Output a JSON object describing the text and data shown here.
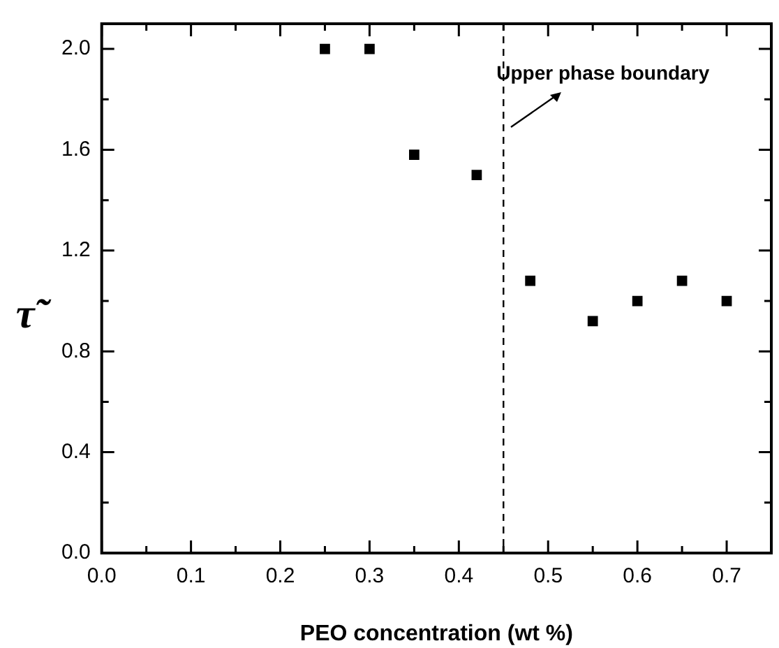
{
  "chart_data": {
    "type": "scatter",
    "xlabel": "PEO concentration (wt %)",
    "ylabel": "τ̃",
    "x": [
      0.25,
      0.3,
      0.35,
      0.42,
      0.48,
      0.55,
      0.6,
      0.65,
      0.7
    ],
    "series": [
      {
        "color": "#000000",
        "values": [
          2.0,
          2.0,
          1.58,
          1.5,
          1.08,
          0.92,
          1.0,
          1.08,
          1.0
        ]
      }
    ],
    "marker": "square",
    "grid": false,
    "legend": false,
    "xlim": [
      0,
      0.75
    ],
    "ylim": [
      0,
      2.1
    ],
    "xticks": [
      {
        "value": 0,
        "label": "0.0"
      },
      {
        "value": 0.05,
        "label": null
      },
      0.1,
      {
        "value": 0.15,
        "label": null
      },
      0.2,
      {
        "value": 0.25,
        "label": null
      },
      0.3,
      {
        "value": 0.35,
        "label": null
      },
      0.4,
      {
        "value": 0.45,
        "label": null
      },
      0.5,
      {
        "value": 0.55,
        "label": null
      },
      0.6,
      {
        "value": 0.65,
        "label": null
      },
      0.7
    ],
    "yticks": [
      {
        "value": 0,
        "label": "0.0"
      },
      {
        "value": 0.2,
        "label": null
      },
      0.4,
      {
        "value": 0.6,
        "label": null
      },
      0.8,
      {
        "value": 1.0,
        "label": null
      },
      1.2,
      {
        "value": 1.4,
        "label": null
      },
      1.6,
      {
        "value": 1.8,
        "label": null
      },
      {
        "value": 2.0,
        "label": "2.0"
      }
    ],
    "ref_lines": [
      {
        "axis": "x",
        "value": 0.45,
        "line_style": "dashed",
        "color": "#000000"
      }
    ],
    "annotations": [
      {
        "text": "Upper phase boundary",
        "x": 0.45,
        "y": 1.9
      }
    ]
  }
}
